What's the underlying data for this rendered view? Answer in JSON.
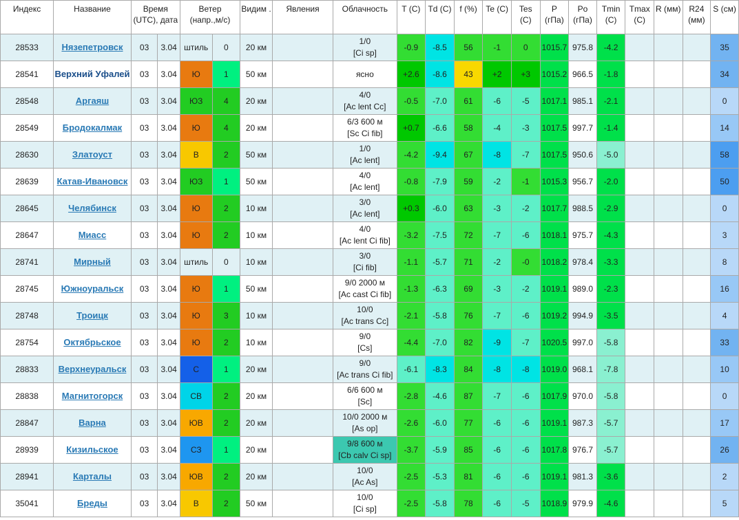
{
  "headers": [
    {
      "id": "index",
      "text": "Индекс"
    },
    {
      "id": "name",
      "text": "Название"
    },
    {
      "id": "time",
      "text": "Время (UTC), дата"
    },
    {
      "id": "wind",
      "text": "Ветер (напр.,м/с)"
    },
    {
      "id": "vis",
      "text": "Видим ."
    },
    {
      "id": "phen",
      "text": "Явления"
    },
    {
      "id": "cloud",
      "text": "Облачность"
    },
    {
      "id": "t",
      "text": "T (C)"
    },
    {
      "id": "td",
      "text": "Td (C)"
    },
    {
      "id": "f",
      "text": "f (%)"
    },
    {
      "id": "te",
      "text": "Te (C)"
    },
    {
      "id": "tes",
      "text": "Tes (C)"
    },
    {
      "id": "p",
      "text": "P (гПа)"
    },
    {
      "id": "po",
      "text": "Po (гПа)"
    },
    {
      "id": "tmin",
      "text": "Tmin (C)"
    },
    {
      "id": "tmax",
      "text": "Tmax (C)"
    },
    {
      "id": "r",
      "text": "R (мм)"
    },
    {
      "id": "r24",
      "text": "R24 (мм)"
    },
    {
      "id": "s",
      "text": "S (см)"
    }
  ],
  "rows": [
    {
      "index": "28533",
      "name": "Нязепетровск",
      "link": true,
      "time": "03",
      "date": "3.04",
      "wind_dir": "штиль",
      "wind_dir_color": "",
      "wind_speed": "0",
      "wind_speed_color": "",
      "vis": "20 км",
      "phen": "",
      "cloud1": "1/0",
      "cloud2": "[Ci sp]",
      "cloud_color": "",
      "t": "-0.9",
      "t_color": "#33dd33",
      "td": "-8.5",
      "td_color": "#00e4e4",
      "f": "56",
      "f_color": "#33dd33",
      "te": "-1",
      "te_color": "#33dd33",
      "tes": "0",
      "tes_color": "#33dd33",
      "p": "1015.7",
      "p_color": "#00e04a",
      "po": "975.8",
      "tmin": "-4.2",
      "tmin_color": "#00e04a",
      "tmax": "",
      "r": "",
      "r24": "",
      "s": "35",
      "s_color": "#72b3f1"
    },
    {
      "index": "28541",
      "name": "Верхний Уфалей",
      "link": false,
      "time": "03",
      "date": "3.04",
      "wind_dir": "Ю",
      "wind_dir_color": "#e87a10",
      "wind_speed": "1",
      "wind_speed_color": "#00f080",
      "vis": "50 км",
      "phen": "",
      "cloud1": "ясно",
      "cloud2": "",
      "cloud_color": "",
      "t": "+2.6",
      "t_color": "#00c800",
      "td": "-8.6",
      "td_color": "#00e4e4",
      "f": "43",
      "f_color": "#f8d800",
      "te": "+2",
      "te_color": "#00c800",
      "tes": "+3",
      "tes_color": "#00c800",
      "p": "1015.2",
      "p_color": "#00e04a",
      "po": "966.5",
      "tmin": "-1.8",
      "tmin_color": "#00e04a",
      "tmax": "",
      "r": "",
      "r24": "",
      "s": "34",
      "s_color": "#72b3f1"
    },
    {
      "index": "28548",
      "name": "Аргаяш",
      "link": true,
      "time": "03",
      "date": "3.04",
      "wind_dir": "ЮЗ",
      "wind_dir_color": "#22cc22",
      "wind_speed": "4",
      "wind_speed_color": "#22cc22",
      "vis": "20 км",
      "phen": "",
      "cloud1": "4/0",
      "cloud2": "[Ac lent Cc]",
      "cloud_color": "",
      "t": "-0.5",
      "t_color": "#33dd33",
      "td": "-7.0",
      "td_color": "#5ef0c8",
      "f": "61",
      "f_color": "#33dd33",
      "te": "-6",
      "te_color": "#5ef0c8",
      "tes": "-5",
      "tes_color": "#5ef0c8",
      "p": "1017.1",
      "p_color": "#00e04a",
      "po": "985.1",
      "tmin": "-2.1",
      "tmin_color": "#00e04a",
      "tmax": "",
      "r": "",
      "r24": "",
      "s": "0",
      "s_color": "#b8d8f8"
    },
    {
      "index": "28549",
      "name": "Бродокалмак",
      "link": true,
      "time": "03",
      "date": "3.04",
      "wind_dir": "Ю",
      "wind_dir_color": "#e87a10",
      "wind_speed": "4",
      "wind_speed_color": "#22cc22",
      "vis": "20 км",
      "phen": "",
      "cloud1": "6/3 600 м",
      "cloud2": "[Sc Ci fib]",
      "cloud_color": "",
      "t": "+0.7",
      "t_color": "#00c800",
      "td": "-6.6",
      "td_color": "#5ef0c8",
      "f": "58",
      "f_color": "#33dd33",
      "te": "-4",
      "te_color": "#5ef0c8",
      "tes": "-3",
      "tes_color": "#5ef0c8",
      "p": "1017.5",
      "p_color": "#00e04a",
      "po": "997.7",
      "tmin": "-1.4",
      "tmin_color": "#00e04a",
      "tmax": "",
      "r": "",
      "r24": "",
      "s": "14",
      "s_color": "#98c8f6"
    },
    {
      "index": "28630",
      "name": "Златоуст",
      "link": true,
      "time": "03",
      "date": "3.04",
      "wind_dir": "В",
      "wind_dir_color": "#f8c800",
      "wind_speed": "2",
      "wind_speed_color": "#22cc22",
      "vis": "50 км",
      "phen": "",
      "cloud1": "1/0",
      "cloud2": "[Ac lent]",
      "cloud_color": "",
      "t": "-4.2",
      "t_color": "#33dd33",
      "td": "-9.4",
      "td_color": "#00e4e4",
      "f": "67",
      "f_color": "#33dd33",
      "te": "-8",
      "te_color": "#00e4e4",
      "tes": "-7",
      "tes_color": "#5ef0c8",
      "p": "1017.5",
      "p_color": "#00e04a",
      "po": "950.6",
      "tmin": "-5.0",
      "tmin_color": "#8af0d0",
      "tmax": "",
      "r": "",
      "r24": "",
      "s": "58",
      "s_color": "#4c9ef0"
    },
    {
      "index": "28639",
      "name": "Катав-Ивановск",
      "link": true,
      "time": "03",
      "date": "3.04",
      "wind_dir": "ЮЗ",
      "wind_dir_color": "#22cc22",
      "wind_speed": "1",
      "wind_speed_color": "#00f080",
      "vis": "50 км",
      "phen": "",
      "cloud1": "4/0",
      "cloud2": "[Ac lent]",
      "cloud_color": "",
      "t": "-0.8",
      "t_color": "#33dd33",
      "td": "-7.9",
      "td_color": "#5ef0c8",
      "f": "59",
      "f_color": "#33dd33",
      "te": "-2",
      "te_color": "#5ef0c8",
      "tes": "-1",
      "tes_color": "#33dd33",
      "p": "1015.3",
      "p_color": "#00e04a",
      "po": "956.7",
      "tmin": "-2.0",
      "tmin_color": "#00e04a",
      "tmax": "",
      "r": "",
      "r24": "",
      "s": "50",
      "s_color": "#4c9ef0"
    },
    {
      "index": "28645",
      "name": "Челябинск",
      "link": true,
      "time": "03",
      "date": "3.04",
      "wind_dir": "Ю",
      "wind_dir_color": "#e87a10",
      "wind_speed": "2",
      "wind_speed_color": "#22cc22",
      "vis": "10 км",
      "phen": "",
      "cloud1": "3/0",
      "cloud2": "[Ac lent]",
      "cloud_color": "",
      "t": "+0.3",
      "t_color": "#00c800",
      "td": "-6.0",
      "td_color": "#5ef0c8",
      "f": "63",
      "f_color": "#33dd33",
      "te": "-3",
      "te_color": "#5ef0c8",
      "tes": "-2",
      "tes_color": "#5ef0c8",
      "p": "1017.7",
      "p_color": "#00e04a",
      "po": "988.5",
      "tmin": "-2.9",
      "tmin_color": "#00e04a",
      "tmax": "",
      "r": "",
      "r24": "",
      "s": "0",
      "s_color": "#b8d8f8"
    },
    {
      "index": "28647",
      "name": "Миасс",
      "link": true,
      "time": "03",
      "date": "3.04",
      "wind_dir": "Ю",
      "wind_dir_color": "#e87a10",
      "wind_speed": "2",
      "wind_speed_color": "#22cc22",
      "vis": "10 км",
      "phen": "",
      "cloud1": "4/0",
      "cloud2": "[Ac lent Ci fib]",
      "cloud_color": "",
      "t": "-3.2",
      "t_color": "#33dd33",
      "td": "-7.5",
      "td_color": "#5ef0c8",
      "f": "72",
      "f_color": "#33dd33",
      "te": "-7",
      "te_color": "#5ef0c8",
      "tes": "-6",
      "tes_color": "#5ef0c8",
      "p": "1018.1",
      "p_color": "#00e04a",
      "po": "975.7",
      "tmin": "-4.3",
      "tmin_color": "#00e04a",
      "tmax": "",
      "r": "",
      "r24": "",
      "s": "3",
      "s_color": "#b8d8f8"
    },
    {
      "index": "28741",
      "name": "Мирный",
      "link": true,
      "time": "03",
      "date": "3.04",
      "wind_dir": "штиль",
      "wind_dir_color": "",
      "wind_speed": "0",
      "wind_speed_color": "",
      "vis": "10 км",
      "phen": "",
      "cloud1": "3/0",
      "cloud2": "[Ci fib]",
      "cloud_color": "",
      "t": "-1.1",
      "t_color": "#33dd33",
      "td": "-5.7",
      "td_color": "#5ef0c8",
      "f": "71",
      "f_color": "#33dd33",
      "te": "-2",
      "te_color": "#5ef0c8",
      "tes": "-0",
      "tes_color": "#33dd33",
      "p": "1018.2",
      "p_color": "#00e04a",
      "po": "978.4",
      "tmin": "-3.3",
      "tmin_color": "#00e04a",
      "tmax": "",
      "r": "",
      "r24": "",
      "s": "8",
      "s_color": "#b8d8f8"
    },
    {
      "index": "28745",
      "name": "Южноуральск",
      "link": true,
      "time": "03",
      "date": "3.04",
      "wind_dir": "Ю",
      "wind_dir_color": "#e87a10",
      "wind_speed": "1",
      "wind_speed_color": "#00f080",
      "vis": "50 км",
      "phen": "",
      "cloud1": "9/0 2000 м",
      "cloud2": "[Ac cast Ci fib]",
      "cloud_color": "",
      "t": "-1.3",
      "t_color": "#33dd33",
      "td": "-6.3",
      "td_color": "#5ef0c8",
      "f": "69",
      "f_color": "#33dd33",
      "te": "-3",
      "te_color": "#5ef0c8",
      "tes": "-2",
      "tes_color": "#5ef0c8",
      "p": "1019.1",
      "p_color": "#00e04a",
      "po": "989.0",
      "tmin": "-2.3",
      "tmin_color": "#00e04a",
      "tmax": "",
      "r": "",
      "r24": "",
      "s": "16",
      "s_color": "#98c8f6"
    },
    {
      "index": "28748",
      "name": "Троицк",
      "link": true,
      "time": "03",
      "date": "3.04",
      "wind_dir": "Ю",
      "wind_dir_color": "#e87a10",
      "wind_speed": "3",
      "wind_speed_color": "#22cc22",
      "vis": "10 км",
      "phen": "",
      "cloud1": "10/0",
      "cloud2": "[Ac trans Cc]",
      "cloud_color": "",
      "t": "-2.1",
      "t_color": "#33dd33",
      "td": "-5.8",
      "td_color": "#5ef0c8",
      "f": "76",
      "f_color": "#33dd33",
      "te": "-7",
      "te_color": "#5ef0c8",
      "tes": "-6",
      "tes_color": "#5ef0c8",
      "p": "1019.2",
      "p_color": "#00e04a",
      "po": "994.9",
      "tmin": "-3.5",
      "tmin_color": "#00e04a",
      "tmax": "",
      "r": "",
      "r24": "",
      "s": "4",
      "s_color": "#b8d8f8"
    },
    {
      "index": "28754",
      "name": "Октябрьское",
      "link": true,
      "time": "03",
      "date": "3.04",
      "wind_dir": "Ю",
      "wind_dir_color": "#e87a10",
      "wind_speed": "2",
      "wind_speed_color": "#22cc22",
      "vis": "10 км",
      "phen": "",
      "cloud1": "9/0",
      "cloud2": "[Cs]",
      "cloud_color": "",
      "t": "-4.4",
      "t_color": "#33dd33",
      "td": "-7.0",
      "td_color": "#5ef0c8",
      "f": "82",
      "f_color": "#33dd33",
      "te": "-9",
      "te_color": "#00e4e4",
      "tes": "-7",
      "tes_color": "#5ef0c8",
      "p": "1020.5",
      "p_color": "#00e04a",
      "po": "997.0",
      "tmin": "-5.8",
      "tmin_color": "#8af0d0",
      "tmax": "",
      "r": "",
      "r24": "",
      "s": "33",
      "s_color": "#72b3f1"
    },
    {
      "index": "28833",
      "name": "Верхнеуральск",
      "link": true,
      "time": "03",
      "date": "3.04",
      "wind_dir": "С",
      "wind_dir_color": "#1460e8",
      "wind_speed": "1",
      "wind_speed_color": "#00f080",
      "vis": "20 км",
      "phen": "",
      "cloud1": "9/0",
      "cloud2": "[Ac trans Ci fib]",
      "cloud_color": "",
      "t": "-6.1",
      "t_color": "#5ef0c8",
      "td": "-8.3",
      "td_color": "#00e4e4",
      "f": "84",
      "f_color": "#33dd33",
      "te": "-8",
      "te_color": "#00e4e4",
      "tes": "-8",
      "tes_color": "#00e4e4",
      "p": "1019.0",
      "p_color": "#00e04a",
      "po": "968.1",
      "tmin": "-7.8",
      "tmin_color": "#8af0d0",
      "tmax": "",
      "r": "",
      "r24": "",
      "s": "10",
      "s_color": "#98c8f6"
    },
    {
      "index": "28838",
      "name": "Магнитогорск",
      "link": true,
      "time": "03",
      "date": "3.04",
      "wind_dir": "СВ",
      "wind_dir_color": "#00d4e8",
      "wind_speed": "2",
      "wind_speed_color": "#22cc22",
      "vis": "20 км",
      "phen": "",
      "cloud1": "6/6 600 м",
      "cloud2": "[Sc]",
      "cloud_color": "",
      "t": "-2.8",
      "t_color": "#33dd33",
      "td": "-4.6",
      "td_color": "#5ef0c8",
      "f": "87",
      "f_color": "#33dd33",
      "te": "-7",
      "te_color": "#5ef0c8",
      "tes": "-6",
      "tes_color": "#5ef0c8",
      "p": "1017.9",
      "p_color": "#00e04a",
      "po": "970.0",
      "tmin": "-5.8",
      "tmin_color": "#8af0d0",
      "tmax": "",
      "r": "",
      "r24": "",
      "s": "0",
      "s_color": "#b8d8f8"
    },
    {
      "index": "28847",
      "name": "Варна",
      "link": true,
      "time": "03",
      "date": "3.04",
      "wind_dir": "ЮВ",
      "wind_dir_color": "#f8a800",
      "wind_speed": "2",
      "wind_speed_color": "#22cc22",
      "vis": "20 км",
      "phen": "",
      "cloud1": "10/0 2000 м",
      "cloud2": "[As op]",
      "cloud_color": "",
      "t": "-2.6",
      "t_color": "#33dd33",
      "td": "-6.0",
      "td_color": "#5ef0c8",
      "f": "77",
      "f_color": "#33dd33",
      "te": "-6",
      "te_color": "#5ef0c8",
      "tes": "-6",
      "tes_color": "#5ef0c8",
      "p": "1019.1",
      "p_color": "#00e04a",
      "po": "987.3",
      "tmin": "-5.7",
      "tmin_color": "#8af0d0",
      "tmax": "",
      "r": "",
      "r24": "",
      "s": "17",
      "s_color": "#98c8f6"
    },
    {
      "index": "28939",
      "name": "Кизильское",
      "link": true,
      "time": "03",
      "date": "3.04",
      "wind_dir": "СЗ",
      "wind_dir_color": "#1e96f0",
      "wind_speed": "1",
      "wind_speed_color": "#00f080",
      "vis": "20 км",
      "phen": "",
      "cloud1": "9/8 600 м",
      "cloud2": "[Cb calv Ci sp]",
      "cloud_color": "#3cc8b0",
      "t": "-3.7",
      "t_color": "#33dd33",
      "td": "-5.9",
      "td_color": "#5ef0c8",
      "f": "85",
      "f_color": "#33dd33",
      "te": "-6",
      "te_color": "#5ef0c8",
      "tes": "-6",
      "tes_color": "#5ef0c8",
      "p": "1017.8",
      "p_color": "#00e04a",
      "po": "976.7",
      "tmin": "-5.7",
      "tmin_color": "#8af0d0",
      "tmax": "",
      "r": "",
      "r24": "",
      "s": "26",
      "s_color": "#72b3f1"
    },
    {
      "index": "28941",
      "name": "Карталы",
      "link": true,
      "time": "03",
      "date": "3.04",
      "wind_dir": "ЮВ",
      "wind_dir_color": "#f8a800",
      "wind_speed": "2",
      "wind_speed_color": "#22cc22",
      "vis": "20 км",
      "phen": "",
      "cloud1": "10/0",
      "cloud2": "[Ac As]",
      "cloud_color": "",
      "t": "-2.5",
      "t_color": "#33dd33",
      "td": "-5.3",
      "td_color": "#5ef0c8",
      "f": "81",
      "f_color": "#33dd33",
      "te": "-6",
      "te_color": "#5ef0c8",
      "tes": "-6",
      "tes_color": "#5ef0c8",
      "p": "1019.1",
      "p_color": "#00e04a",
      "po": "981.3",
      "tmin": "-3.6",
      "tmin_color": "#00e04a",
      "tmax": "",
      "r": "",
      "r24": "",
      "s": "2",
      "s_color": "#b8d8f8"
    },
    {
      "index": "35041",
      "name": "Бреды",
      "link": true,
      "time": "03",
      "date": "3.04",
      "wind_dir": "В",
      "wind_dir_color": "#f8c800",
      "wind_speed": "2",
      "wind_speed_color": "#22cc22",
      "vis": "50 км",
      "phen": "",
      "cloud1": "10/0",
      "cloud2": "[Ci sp]",
      "cloud_color": "",
      "t": "-2.5",
      "t_color": "#33dd33",
      "td": "-5.8",
      "td_color": "#5ef0c8",
      "f": "78",
      "f_color": "#33dd33",
      "te": "-6",
      "te_color": "#5ef0c8",
      "tes": "-5",
      "tes_color": "#5ef0c8",
      "p": "1018.9",
      "p_color": "#00e04a",
      "po": "979.9",
      "tmin": "-4.6",
      "tmin_color": "#00e04a",
      "tmax": "",
      "r": "",
      "r24": "",
      "s": "5",
      "s_color": "#b8d8f8"
    }
  ]
}
